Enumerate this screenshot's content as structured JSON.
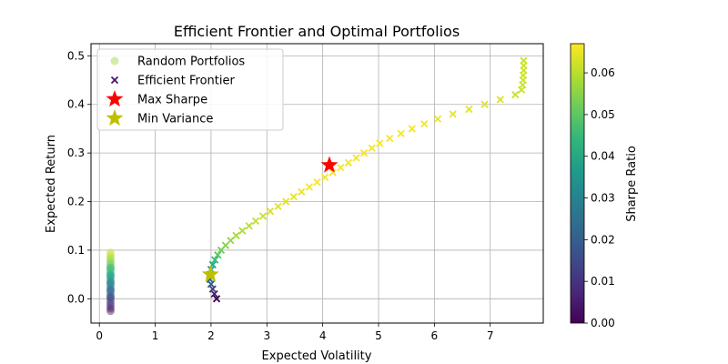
{
  "chart_data": {
    "type": "scatter",
    "title": "Efficient Frontier and Optimal Portfolios",
    "xlabel": "Expected Volatility",
    "ylabel": "Expected Return",
    "xlim": [
      -0.15,
      7.95
    ],
    "ylim": [
      -0.05,
      0.525
    ],
    "xticks": [
      0,
      1,
      2,
      3,
      4,
      5,
      6,
      7
    ],
    "yticks": [
      0.0,
      0.1,
      0.2,
      0.3,
      0.4,
      0.5
    ],
    "grid": true,
    "legend_position": "top-left",
    "colorbar": {
      "label": "Sharpe Ratio",
      "range": [
        0.0,
        0.067
      ],
      "ticks": [
        0.0,
        0.01,
        0.02,
        0.03,
        0.04,
        0.05,
        0.06
      ],
      "colormap": "viridis"
    },
    "series": [
      {
        "name": "Random Portfolios",
        "marker": "circle",
        "x": [
          0.2,
          0.2,
          0.2,
          0.2,
          0.2,
          0.2,
          0.2,
          0.2,
          0.2,
          0.2,
          0.2,
          0.2,
          0.2,
          0.2,
          0.2,
          0.2,
          0.2,
          0.2,
          0.2,
          0.2,
          0.2,
          0.2,
          0.2,
          0.2,
          0.2,
          0.2,
          0.2,
          0.2,
          0.2,
          0.2
        ],
        "y": [
          -0.025,
          -0.02,
          -0.015,
          -0.01,
          -0.005,
          0.0,
          0.005,
          0.01,
          0.015,
          0.02,
          0.025,
          0.03,
          0.035,
          0.04,
          0.045,
          0.05,
          0.055,
          0.06,
          0.065,
          0.07,
          0.075,
          0.08,
          0.085,
          0.09,
          0.095,
          0.003,
          0.018,
          0.033,
          0.048,
          0.063
        ]
      },
      {
        "name": "Efficient Frontier",
        "marker": "x",
        "x": [
          2.1,
          2.06,
          2.03,
          2.0,
          1.98,
          1.98,
          2.0,
          2.03,
          2.07,
          2.12,
          2.18,
          2.26,
          2.35,
          2.45,
          2.56,
          2.68,
          2.8,
          2.93,
          3.06,
          3.2,
          3.34,
          3.48,
          3.62,
          3.76,
          3.9,
          4.04,
          4.18,
          4.32,
          4.46,
          4.6,
          4.74,
          4.88,
          5.02,
          5.2,
          5.4,
          5.6,
          5.82,
          6.06,
          6.33,
          6.62,
          6.9,
          7.18,
          7.45,
          7.56,
          7.58,
          7.59,
          7.59,
          7.6,
          7.6,
          7.6
        ],
        "y": [
          0.0,
          0.01,
          0.02,
          0.03,
          0.04,
          0.05,
          0.06,
          0.07,
          0.08,
          0.09,
          0.1,
          0.11,
          0.12,
          0.13,
          0.14,
          0.15,
          0.16,
          0.17,
          0.18,
          0.19,
          0.2,
          0.21,
          0.22,
          0.23,
          0.24,
          0.25,
          0.26,
          0.27,
          0.28,
          0.29,
          0.3,
          0.31,
          0.32,
          0.33,
          0.34,
          0.35,
          0.36,
          0.37,
          0.38,
          0.39,
          0.4,
          0.41,
          0.42,
          0.43,
          0.44,
          0.45,
          0.46,
          0.47,
          0.48,
          0.49
        ],
        "sharpe": [
          0.0,
          0.006,
          0.012,
          0.018,
          0.024,
          0.03,
          0.036,
          0.041,
          0.045,
          0.049,
          0.052,
          0.054,
          0.056,
          0.058,
          0.059,
          0.06,
          0.061,
          0.062,
          0.063,
          0.064,
          0.064,
          0.065,
          0.065,
          0.066,
          0.066,
          0.066,
          0.066,
          0.066,
          0.066,
          0.066,
          0.066,
          0.066,
          0.066,
          0.066,
          0.066,
          0.066,
          0.066,
          0.065,
          0.065,
          0.064,
          0.064,
          0.063,
          0.062,
          0.062,
          0.062,
          0.062,
          0.062,
          0.062,
          0.062,
          0.062
        ]
      },
      {
        "name": "Max Sharpe",
        "marker": "star",
        "color": "#ff0000",
        "x": [
          4.12
        ],
        "y": [
          0.275
        ]
      },
      {
        "name": "Min Variance",
        "marker": "star",
        "color": "#bfbf00",
        "x": [
          1.99
        ],
        "y": [
          0.05
        ]
      }
    ]
  }
}
